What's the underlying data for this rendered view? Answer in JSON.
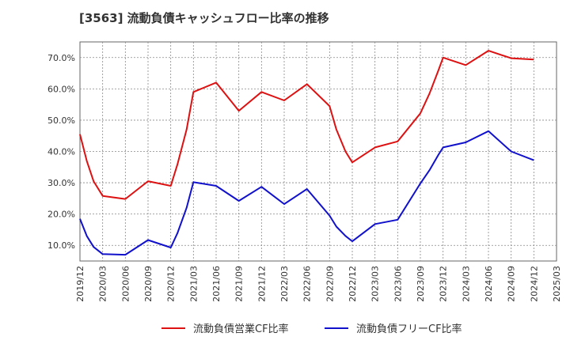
{
  "chart_data": {
    "type": "line",
    "title": "[3563]  流動負債キャッシュフロー比率の推移",
    "xlabel": "",
    "ylabel": "",
    "ylim": [
      5,
      75
    ],
    "grid": true,
    "legend_position": "bottom",
    "y_ticks": [
      10,
      20,
      30,
      40,
      50,
      60,
      70
    ],
    "y_tick_labels": [
      "10.0%",
      "20.0%",
      "30.0%",
      "40.0%",
      "50.0%",
      "60.0%",
      "70.0%"
    ],
    "x_tick_labels": [
      "2019/12",
      "2020/03",
      "2020/06",
      "2020/09",
      "2020/12",
      "2021/03",
      "2021/06",
      "2021/09",
      "2021/12",
      "2022/03",
      "2022/06",
      "2022/09",
      "2022/12",
      "2023/03",
      "2023/06",
      "2023/09",
      "2023/12",
      "2024/03",
      "2024/06",
      "2024/09",
      "2024/12",
      "2025/03"
    ],
    "series": [
      {
        "name": "流動負債営業CF比率",
        "color": "#dd1111",
        "points": [
          [
            0,
            45.5
          ],
          [
            0.3,
            37
          ],
          [
            0.6,
            30.5
          ],
          [
            1,
            25.8
          ],
          [
            2,
            24.8
          ],
          [
            3,
            30.5
          ],
          [
            4,
            29
          ],
          [
            4.3,
            36
          ],
          [
            4.7,
            47
          ],
          [
            5,
            59
          ],
          [
            6,
            62
          ],
          [
            7,
            53
          ],
          [
            8,
            59
          ],
          [
            9,
            56.3
          ],
          [
            10,
            61.5
          ],
          [
            11,
            54.5
          ],
          [
            11.3,
            47
          ],
          [
            11.7,
            40
          ],
          [
            12,
            36.5
          ],
          [
            13,
            41.3
          ],
          [
            14,
            43.2
          ],
          [
            15,
            52.2
          ],
          [
            15.4,
            58.5
          ],
          [
            15.8,
            66
          ],
          [
            16,
            70
          ],
          [
            17,
            67.6
          ],
          [
            18,
            72.2
          ],
          [
            19,
            69.8
          ],
          [
            20,
            69.4
          ]
        ]
      },
      {
        "name": "流動負債フリーCF比率",
        "color": "#1111cc",
        "points": [
          [
            0,
            18.5
          ],
          [
            0.3,
            13
          ],
          [
            0.6,
            9.5
          ],
          [
            1,
            7.2
          ],
          [
            2,
            7
          ],
          [
            3,
            11.7
          ],
          [
            4,
            9.3
          ],
          [
            4.3,
            14
          ],
          [
            4.7,
            22
          ],
          [
            5,
            30.2
          ],
          [
            6,
            29
          ],
          [
            7,
            24.2
          ],
          [
            8,
            28.7
          ],
          [
            9,
            23.2
          ],
          [
            10,
            28
          ],
          [
            11,
            19.5
          ],
          [
            11.3,
            16
          ],
          [
            11.7,
            13
          ],
          [
            12,
            11.3
          ],
          [
            13,
            16.8
          ],
          [
            14,
            18.2
          ],
          [
            15,
            29.8
          ],
          [
            15.4,
            34
          ],
          [
            15.8,
            39
          ],
          [
            16,
            41.3
          ],
          [
            17,
            42.9
          ],
          [
            18,
            46.5
          ],
          [
            19,
            40
          ],
          [
            20,
            37.2
          ]
        ]
      }
    ]
  }
}
